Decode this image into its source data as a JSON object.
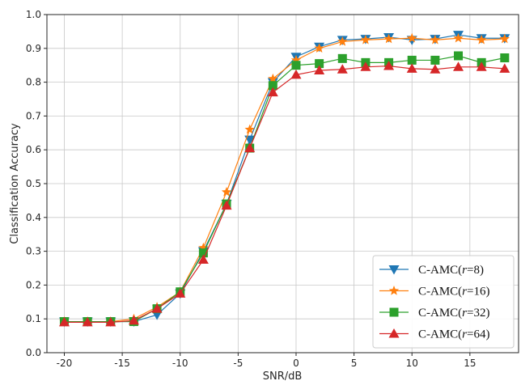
{
  "chart_data": {
    "type": "line",
    "title": "",
    "xlabel": "SNR/dB",
    "ylabel": "Classification Accuracy",
    "xlim": [
      -21.5,
      19.2
    ],
    "ylim": [
      0.0,
      1.0
    ],
    "x_ticks": [
      -20,
      -15,
      -10,
      -5,
      0,
      5,
      10,
      15
    ],
    "y_ticks": [
      0.0,
      0.1,
      0.2,
      0.3,
      0.4,
      0.5,
      0.6,
      0.7,
      0.8,
      0.9,
      1.0
    ],
    "grid": true,
    "legend_position": "bottom-right",
    "x": [
      -20,
      -18,
      -16,
      -14,
      -12,
      -10,
      -8,
      -6,
      -4,
      -2,
      0,
      2,
      4,
      6,
      8,
      10,
      12,
      14,
      16,
      18
    ],
    "series": [
      {
        "name": "C-AMC(r=8)",
        "name_prefix": "C-AMC(",
        "name_var": "r",
        "name_suffix": "=8)",
        "color": "#1f77b4",
        "marker": "triangle-down",
        "values": [
          0.092,
          0.092,
          0.092,
          0.092,
          0.112,
          0.175,
          0.3,
          0.44,
          0.63,
          0.8,
          0.875,
          0.905,
          0.925,
          0.928,
          0.933,
          0.925,
          0.928,
          0.94,
          0.93,
          0.93
        ]
      },
      {
        "name": "C-AMC(r=16)",
        "name_prefix": "C-AMC(",
        "name_var": "r",
        "name_suffix": "=16)",
        "color": "#ff7f0e",
        "marker": "star",
        "values": [
          0.092,
          0.092,
          0.092,
          0.1,
          0.135,
          0.18,
          0.31,
          0.475,
          0.66,
          0.81,
          0.865,
          0.9,
          0.92,
          0.925,
          0.928,
          0.93,
          0.925,
          0.93,
          0.925,
          0.928
        ]
      },
      {
        "name": "C-AMC(r=32)",
        "name_prefix": "C-AMC(",
        "name_var": "r",
        "name_suffix": "=32)",
        "color": "#2ca02c",
        "marker": "square",
        "values": [
          0.092,
          0.092,
          0.092,
          0.092,
          0.13,
          0.18,
          0.295,
          0.44,
          0.605,
          0.79,
          0.85,
          0.855,
          0.87,
          0.858,
          0.858,
          0.865,
          0.865,
          0.878,
          0.858,
          0.872
        ]
      },
      {
        "name": "C-AMC(r=64)",
        "name_prefix": "C-AMC(",
        "name_var": "r",
        "name_suffix": "=64)",
        "color": "#d62728",
        "marker": "triangle-up",
        "values": [
          0.09,
          0.09,
          0.09,
          0.095,
          0.13,
          0.175,
          0.275,
          0.435,
          0.605,
          0.77,
          0.822,
          0.835,
          0.838,
          0.845,
          0.848,
          0.84,
          0.838,
          0.845,
          0.845,
          0.84
        ]
      }
    ]
  }
}
